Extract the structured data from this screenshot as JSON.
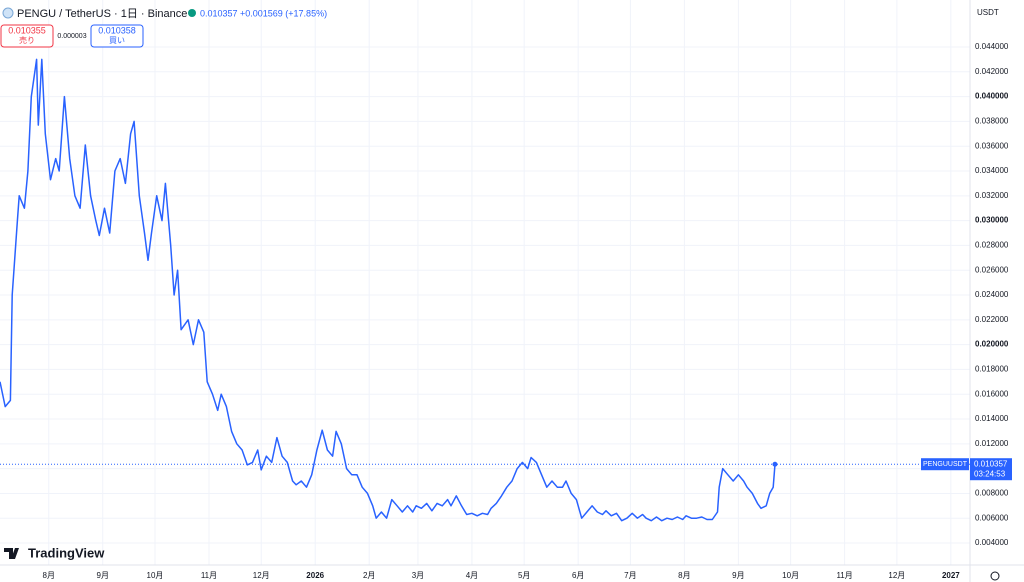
{
  "header": {
    "symbol": "PENGU / TetherUS · 1日 · Binance",
    "last": "0.010357",
    "change": "+0.001569 (+17.85%)",
    "sell_price": "0.010355",
    "sell_label": "売り",
    "spread": "0.000003",
    "buy_price": "0.010358",
    "buy_label": "買い",
    "currency": "USDT",
    "tag_symbol": "PENGUUSDT",
    "countdown": "03:24:53",
    "logo": "TradingView"
  },
  "chart_data": {
    "type": "line",
    "grid": true,
    "xlim": [
      0,
      557
    ],
    "xticks": [
      {
        "value": 28,
        "label": "8月"
      },
      {
        "value": 59,
        "label": "9月"
      },
      {
        "value": 89,
        "label": "10月"
      },
      {
        "value": 120,
        "label": "11月"
      },
      {
        "value": 150,
        "label": "12月"
      },
      {
        "value": 181,
        "label": "2026"
      },
      {
        "value": 212,
        "label": "2月"
      },
      {
        "value": 240,
        "label": "3月"
      },
      {
        "value": 271,
        "label": "4月"
      },
      {
        "value": 301,
        "label": "5月"
      },
      {
        "value": 332,
        "label": "6月"
      },
      {
        "value": 362,
        "label": "7月"
      },
      {
        "value": 393,
        "label": "8月"
      },
      {
        "value": 424,
        "label": "9月"
      },
      {
        "value": 454,
        "label": "10月"
      },
      {
        "value": 485,
        "label": "11月"
      },
      {
        "value": 515,
        "label": "12月"
      },
      {
        "value": 546,
        "label": "2027"
      }
    ],
    "ylim": [
      0.00223,
      0.04779
    ],
    "yticks": [
      {
        "value": 0.004,
        "label": "0.004000"
      },
      {
        "value": 0.006,
        "label": "0.006000"
      },
      {
        "value": 0.008,
        "label": "0.008000"
      },
      {
        "value": 0.01,
        "label": "0.010000"
      },
      {
        "value": 0.012,
        "label": "0.012000"
      },
      {
        "value": 0.014,
        "label": "0.014000"
      },
      {
        "value": 0.016,
        "label": "0.016000"
      },
      {
        "value": 0.018,
        "label": "0.018000"
      },
      {
        "value": 0.02,
        "label": "0.020000"
      },
      {
        "value": 0.022,
        "label": "0.022000"
      },
      {
        "value": 0.024,
        "label": "0.024000"
      },
      {
        "value": 0.026,
        "label": "0.026000"
      },
      {
        "value": 0.028,
        "label": "0.028000"
      },
      {
        "value": 0.03,
        "label": "0.030000"
      },
      {
        "value": 0.032,
        "label": "0.032000"
      },
      {
        "value": 0.034,
        "label": "0.034000"
      },
      {
        "value": 0.036,
        "label": "0.036000"
      },
      {
        "value": 0.038,
        "label": "0.038000"
      },
      {
        "value": 0.04,
        "label": "0.040000"
      },
      {
        "value": 0.042,
        "label": "0.042000"
      },
      {
        "value": 0.044,
        "label": "0.044000"
      }
    ],
    "series": [
      {
        "name": "PENGUUSDT",
        "color": "#2962ff",
        "x": [
          0,
          3,
          6,
          7,
          10,
          11,
          14,
          16,
          18,
          21,
          22,
          24,
          26,
          29,
          32,
          34,
          37,
          40,
          43,
          46,
          49,
          52,
          55,
          57,
          60,
          63,
          66,
          69,
          72,
          75,
          77,
          80,
          83,
          85,
          87,
          90,
          93,
          95,
          98,
          100,
          102,
          104,
          108,
          111,
          114,
          117,
          119,
          122,
          125,
          127,
          130,
          133,
          136,
          139,
          142,
          145,
          148,
          150,
          153,
          156,
          159,
          162,
          165,
          168,
          170,
          173,
          176,
          179,
          182,
          185,
          188,
          191,
          193,
          196,
          199,
          202,
          205,
          208,
          211,
          214,
          216,
          219,
          222,
          225,
          228,
          231,
          234,
          237,
          239,
          242,
          245,
          248,
          251,
          254,
          257,
          259,
          262,
          265,
          268,
          271,
          274,
          277,
          280,
          282,
          285,
          288,
          291,
          294,
          297,
          300,
          303,
          305,
          308,
          311,
          314,
          317,
          320,
          323,
          325,
          328,
          331,
          334,
          337,
          340,
          343,
          346,
          348,
          351,
          354,
          357,
          360,
          363,
          366,
          369,
          371,
          374,
          377,
          380,
          383,
          386,
          389,
          392,
          394,
          397,
          400,
          403,
          406,
          409,
          412,
          413,
          415,
          418,
          421,
          424,
          427,
          429,
          432,
          435,
          437,
          440,
          442,
          444,
          445
        ],
        "values": [
          0.017,
          0.015,
          0.0155,
          0.024,
          0.03,
          0.032,
          0.031,
          0.034,
          0.04,
          0.043,
          0.0377,
          0.043,
          0.037,
          0.0333,
          0.035,
          0.034,
          0.04,
          0.035,
          0.032,
          0.031,
          0.0361,
          0.032,
          0.03,
          0.0288,
          0.031,
          0.029,
          0.034,
          0.035,
          0.033,
          0.037,
          0.038,
          0.032,
          0.029,
          0.0268,
          0.029,
          0.032,
          0.03,
          0.033,
          0.028,
          0.024,
          0.026,
          0.0212,
          0.022,
          0.02,
          0.022,
          0.021,
          0.017,
          0.016,
          0.0147,
          0.016,
          0.015,
          0.013,
          0.012,
          0.0115,
          0.0103,
          0.0105,
          0.0115,
          0.0099,
          0.011,
          0.0105,
          0.0125,
          0.011,
          0.0105,
          0.009,
          0.0087,
          0.009,
          0.0085,
          0.0095,
          0.0115,
          0.0131,
          0.0115,
          0.011,
          0.013,
          0.012,
          0.01,
          0.0095,
          0.0095,
          0.0085,
          0.008,
          0.007,
          0.006,
          0.0065,
          0.006,
          0.0075,
          0.007,
          0.0065,
          0.007,
          0.0065,
          0.007,
          0.0068,
          0.0072,
          0.0066,
          0.0072,
          0.007,
          0.0075,
          0.007,
          0.0078,
          0.007,
          0.0063,
          0.0064,
          0.0062,
          0.0064,
          0.0063,
          0.0068,
          0.0072,
          0.0078,
          0.0085,
          0.009,
          0.01,
          0.0105,
          0.01,
          0.0109,
          0.0105,
          0.0095,
          0.0085,
          0.009,
          0.0085,
          0.0085,
          0.009,
          0.008,
          0.0075,
          0.006,
          0.0065,
          0.007,
          0.0065,
          0.0063,
          0.0066,
          0.0062,
          0.0064,
          0.0058,
          0.006,
          0.0064,
          0.006,
          0.0063,
          0.006,
          0.0058,
          0.0061,
          0.0058,
          0.006,
          0.0059,
          0.0061,
          0.0059,
          0.0062,
          0.006,
          0.006,
          0.0061,
          0.0059,
          0.0059,
          0.0065,
          0.0085,
          0.01,
          0.0095,
          0.009,
          0.0095,
          0.009,
          0.0085,
          0.008,
          0.0072,
          0.0068,
          0.007,
          0.008,
          0.0085,
          0.010357
        ]
      }
    ]
  }
}
